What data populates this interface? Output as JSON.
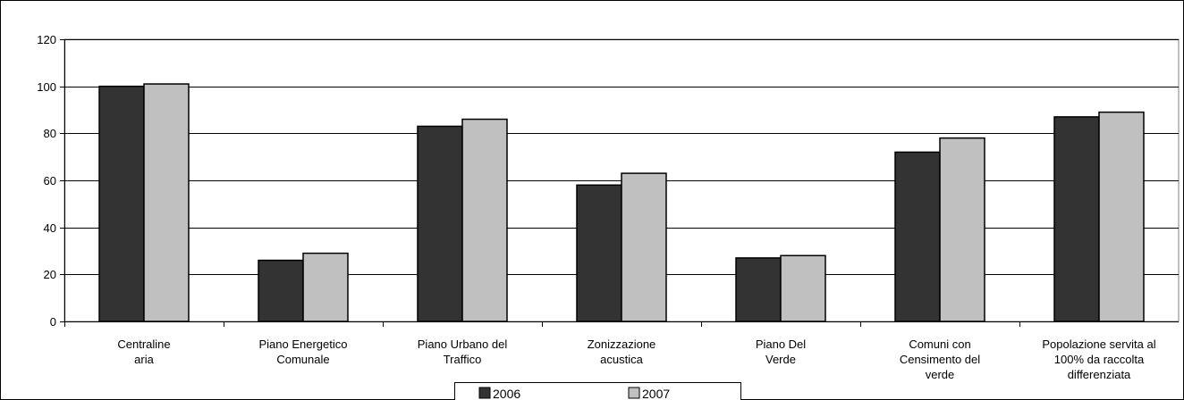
{
  "chart_data": {
    "type": "bar",
    "categories": [
      [
        "Centraline",
        "aria"
      ],
      [
        "Piano Energetico",
        "Comunale"
      ],
      [
        "Piano Urbano del",
        "Traffico"
      ],
      [
        "Zonizzazione",
        "acustica"
      ],
      [
        "Piano Del",
        "Verde"
      ],
      [
        "Comuni con",
        "Censimento del",
        "verde"
      ],
      [
        "Popolazione servita al",
        "100% da raccolta",
        "differenziata"
      ]
    ],
    "series": [
      {
        "name": "2006",
        "color": "#333333",
        "values": [
          100,
          26,
          83,
          58,
          27,
          72,
          87
        ]
      },
      {
        "name": "2007",
        "color": "#c0c0c0",
        "values": [
          101,
          29,
          86,
          63,
          28,
          78,
          89
        ]
      }
    ],
    "ylim": [
      0,
      120
    ],
    "yticks": [
      0,
      20,
      40,
      60,
      80,
      100,
      120
    ],
    "grid": true,
    "legend_position": "bottom-center"
  }
}
